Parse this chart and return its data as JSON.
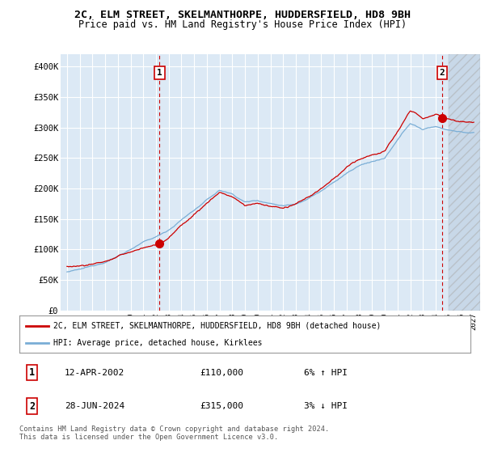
{
  "title_line1": "2C, ELM STREET, SKELMANTHORPE, HUDDERSFIELD, HD8 9BH",
  "title_line2": "Price paid vs. HM Land Registry's House Price Index (HPI)",
  "title_fontsize": 9.5,
  "subtitle_fontsize": 8.5,
  "ylabel_ticks": [
    "£0",
    "£50K",
    "£100K",
    "£150K",
    "£200K",
    "£250K",
    "£300K",
    "£350K",
    "£400K"
  ],
  "ytick_values": [
    0,
    50000,
    100000,
    150000,
    200000,
    250000,
    300000,
    350000,
    400000
  ],
  "ylim": [
    0,
    420000
  ],
  "xlim_start": 1994.5,
  "xlim_end": 2027.5,
  "xtick_years": [
    1995,
    1996,
    1997,
    1998,
    1999,
    2000,
    2001,
    2002,
    2003,
    2004,
    2005,
    2006,
    2007,
    2008,
    2009,
    2010,
    2011,
    2012,
    2013,
    2014,
    2015,
    2016,
    2017,
    2018,
    2019,
    2020,
    2021,
    2022,
    2023,
    2024,
    2025,
    2026,
    2027
  ],
  "background_color": "#ffffff",
  "plot_bg_color": "#dce9f5",
  "grid_color": "#ffffff",
  "point1_x": 2002.28,
  "point1_y": 110000,
  "point2_x": 2024.49,
  "point2_y": 315000,
  "legend_label_red": "2C, ELM STREET, SKELMANTHORPE, HUDDERSFIELD, HD8 9BH (detached house)",
  "legend_label_blue": "HPI: Average price, detached house, Kirklees",
  "annotation1_date": "12-APR-2002",
  "annotation1_price": "£110,000",
  "annotation1_hpi": "6% ↑ HPI",
  "annotation2_date": "28-JUN-2024",
  "annotation2_price": "£315,000",
  "annotation2_hpi": "3% ↓ HPI",
  "footer_line1": "Contains HM Land Registry data © Crown copyright and database right 2024.",
  "footer_line2": "This data is licensed under the Open Government Licence v3.0.",
  "red_color": "#cc0000",
  "blue_color": "#7aaed6",
  "vline_color": "#cc0000",
  "hatch_start": 2025.0,
  "ann_box_color": "#cc0000"
}
